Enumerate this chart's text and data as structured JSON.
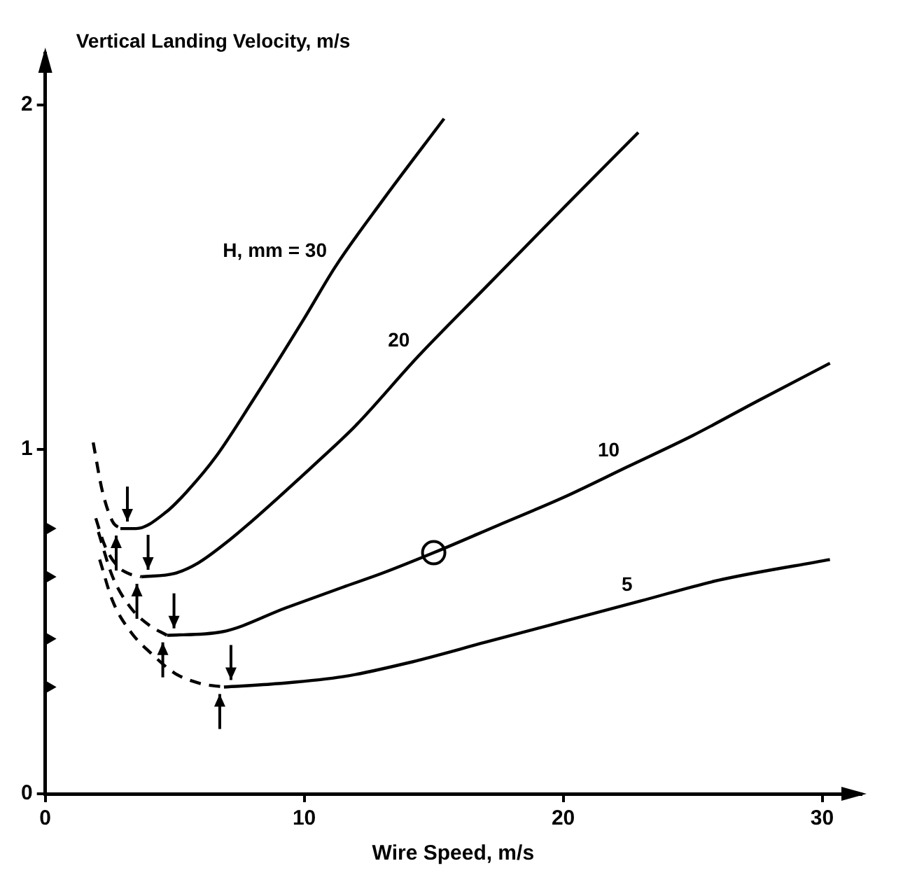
{
  "chart_data": {
    "type": "line",
    "ylabel": "Vertical Landing Velocity, m/s",
    "xlabel": "Wire Speed, m/s",
    "xlim": [
      0,
      31.5
    ],
    "ylim": [
      0,
      2.15
    ],
    "xticks": [
      0,
      10,
      20,
      30
    ],
    "yticks": [
      0,
      1,
      2
    ],
    "grid": false,
    "legend": false,
    "series": [
      {
        "type": "line",
        "line_style": "dashed",
        "marker": "none",
        "color": "#000000",
        "x": [
          1.85,
          2.2,
          2.6,
          2.9
        ],
        "values": [
          1.02,
          0.88,
          0.79,
          0.77
        ]
      },
      {
        "type": "line",
        "name": "H, mm = 30",
        "line_style": "solid",
        "marker": "none",
        "color": "#000000",
        "x": [
          2.9,
          3.5,
          4.7,
          5.5,
          6.6,
          8,
          10,
          11.2,
          13,
          15.4
        ],
        "values": [
          0.77,
          0.77,
          0.82,
          0.88,
          0.98,
          1.14,
          1.38,
          1.53,
          1.72,
          1.96
        ]
      },
      {
        "type": "line",
        "line_style": "dashed",
        "marker": "none",
        "color": "#000000",
        "x": [
          1.95,
          2.3,
          2.8,
          3.2,
          3.7
        ],
        "values": [
          0.8,
          0.72,
          0.66,
          0.64,
          0.63
        ]
      },
      {
        "type": "line",
        "name": "20",
        "line_style": "solid",
        "marker": "none",
        "color": "#000000",
        "x": [
          3.7,
          5,
          5.9,
          7,
          7.8,
          9,
          10.6,
          12,
          14.4,
          17,
          20,
          22.9
        ],
        "values": [
          0.63,
          0.64,
          0.67,
          0.73,
          0.78,
          0.86,
          0.97,
          1.07,
          1.27,
          1.47,
          1.7,
          1.92
        ]
      },
      {
        "type": "line",
        "line_style": "dashed",
        "marker": "none",
        "color": "#000000",
        "x": [
          2.05,
          2.6,
          3.3,
          4,
          4.7
        ],
        "values": [
          0.76,
          0.63,
          0.54,
          0.49,
          0.46
        ]
      },
      {
        "type": "line",
        "name": "10",
        "line_style": "solid",
        "marker": "none",
        "color": "#000000",
        "x": [
          4.7,
          6.8,
          9.3,
          11.5,
          13,
          15,
          17.5,
          20,
          22.5,
          25,
          27.5,
          30.3
        ],
        "values": [
          0.46,
          0.47,
          0.54,
          0.6,
          0.64,
          0.7,
          0.78,
          0.86,
          0.95,
          1.04,
          1.14,
          1.25
        ]
      },
      {
        "type": "line",
        "line_style": "dashed",
        "marker": "none",
        "color": "#000000",
        "x": [
          2.1,
          2.6,
          3.3,
          4.2,
          5,
          6,
          6.9
        ],
        "values": [
          0.68,
          0.56,
          0.47,
          0.4,
          0.35,
          0.32,
          0.31
        ]
      },
      {
        "type": "line",
        "name": "5",
        "line_style": "solid",
        "marker": "none",
        "color": "#000000",
        "x": [
          6.9,
          9,
          11.5,
          14,
          17,
          20,
          23,
          26,
          30.3
        ],
        "values": [
          0.31,
          0.32,
          0.34,
          0.38,
          0.44,
          0.5,
          0.56,
          0.62,
          0.68
        ]
      },
      {
        "type": "scatter",
        "marker": "triangle",
        "color": "#000000",
        "x": [
          0,
          0,
          0,
          0
        ],
        "values": [
          0.77,
          0.63,
          0.45,
          0.31
        ]
      },
      {
        "type": "scatter",
        "marker": "circle",
        "color": "#000000",
        "x": [
          15
        ],
        "values": [
          0.7
        ]
      }
    ]
  }
}
